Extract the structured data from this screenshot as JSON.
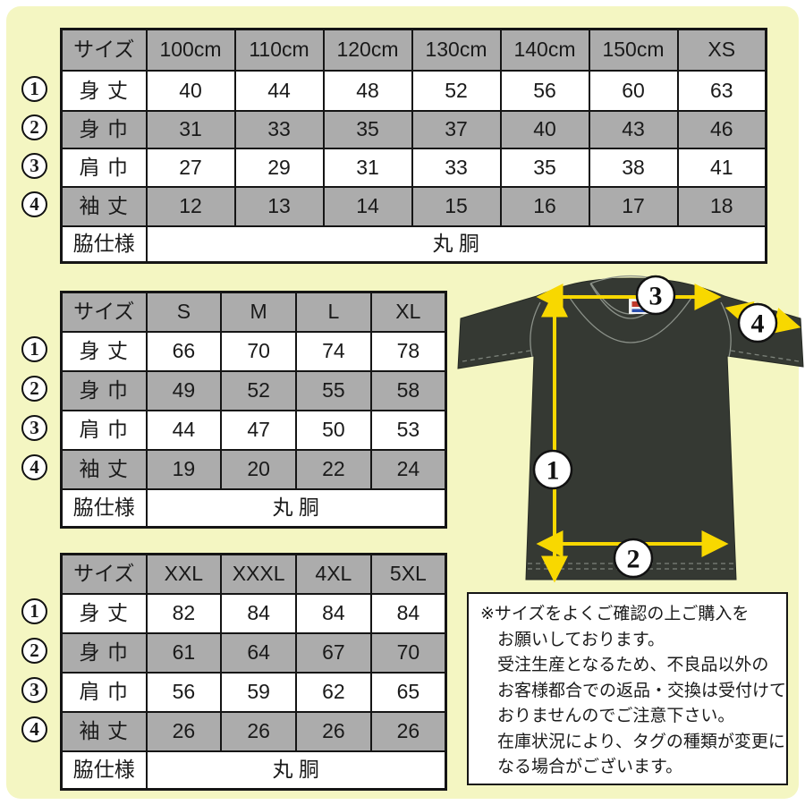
{
  "colors": {
    "background": "#f4f6c2",
    "table_gray": "#acacac",
    "arrow_yellow": "#f8d800",
    "shirt_dark": "#353933",
    "ink": "#1a1a1a"
  },
  "tables": [
    {
      "header": [
        "サイズ",
        "100cm",
        "110cm",
        "120cm",
        "130cm",
        "140cm",
        "150cm",
        "XS"
      ],
      "rows": [
        {
          "num": "1",
          "label": "身 丈",
          "values": [
            "40",
            "44",
            "48",
            "52",
            "56",
            "60",
            "63"
          ]
        },
        {
          "num": "2",
          "label": "身 巾",
          "values": [
            "31",
            "33",
            "35",
            "37",
            "40",
            "43",
            "46"
          ]
        },
        {
          "num": "3",
          "label": "肩 巾",
          "values": [
            "27",
            "29",
            "31",
            "33",
            "35",
            "38",
            "41"
          ]
        },
        {
          "num": "4",
          "label": "袖 丈",
          "values": [
            "12",
            "13",
            "14",
            "15",
            "16",
            "17",
            "18"
          ]
        }
      ],
      "footer": {
        "label": "脇仕様",
        "value": "丸 胴"
      }
    },
    {
      "header": [
        "サイズ",
        "S",
        "M",
        "L",
        "XL"
      ],
      "rows": [
        {
          "num": "1",
          "label": "身 丈",
          "values": [
            "66",
            "70",
            "74",
            "78"
          ]
        },
        {
          "num": "2",
          "label": "身 巾",
          "values": [
            "49",
            "52",
            "55",
            "58"
          ]
        },
        {
          "num": "3",
          "label": "肩 巾",
          "values": [
            "44",
            "47",
            "50",
            "53"
          ]
        },
        {
          "num": "4",
          "label": "袖 丈",
          "values": [
            "19",
            "20",
            "22",
            "24"
          ]
        }
      ],
      "footer": {
        "label": "脇仕様",
        "value": "丸 胴"
      }
    },
    {
      "header": [
        "サイズ",
        "XXL",
        "XXXL",
        "4XL",
        "5XL"
      ],
      "rows": [
        {
          "num": "1",
          "label": "身 丈",
          "values": [
            "82",
            "84",
            "84",
            "84"
          ]
        },
        {
          "num": "2",
          "label": "身 巾",
          "values": [
            "61",
            "64",
            "67",
            "70"
          ]
        },
        {
          "num": "3",
          "label": "肩 巾",
          "values": [
            "56",
            "59",
            "62",
            "65"
          ]
        },
        {
          "num": "4",
          "label": "袖 丈",
          "values": [
            "26",
            "26",
            "26",
            "26"
          ]
        }
      ],
      "footer": {
        "label": "脇仕様",
        "value": "丸 胴"
      }
    }
  ],
  "diagram": {
    "markers": [
      "1",
      "2",
      "3",
      "4"
    ]
  },
  "note": {
    "lines": [
      "※サイズをよくご確認の上ご購入を",
      "お願いしております。",
      "受注生産となるため、不良品以外の",
      "お客様都合での返品・交換は受付けて",
      "おりませんのでご注意下さい。",
      "在庫状況により、タグの種類が変更に",
      "なる場合がございます。"
    ]
  }
}
